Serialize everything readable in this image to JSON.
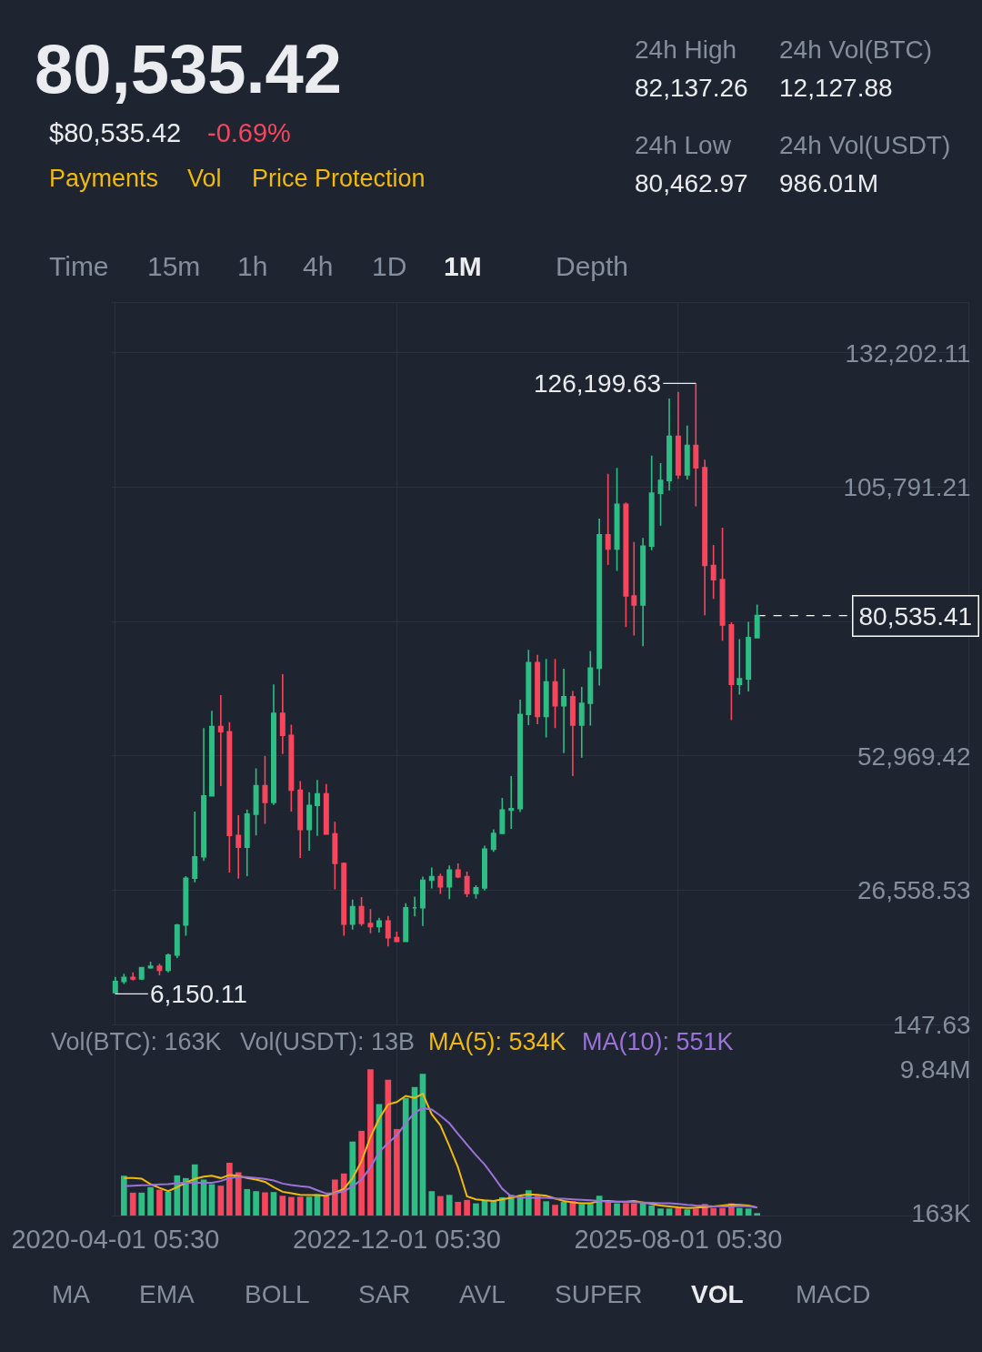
{
  "chart_data": [
    {
      "type": "other",
      "title": "80,535.42",
      "annotations": [
        "$80,535.42",
        "-0.69%",
        "Payments",
        "Vol",
        "Price Protection",
        "24h High",
        "82,137.26",
        "24h Vol(BTC)",
        "12,127.88",
        "24h Low",
        "80,462.97",
        "24h Vol(USDT)",
        "986.01M",
        "Time",
        "15m",
        "1h",
        "4h",
        "1D",
        "1M",
        "Depth"
      ]
    },
    {
      "type": "candlestick",
      "x": [
        "2020-04",
        "2020-05",
        "2020-06",
        "2020-07",
        "2020-08",
        "2020-09",
        "2020-10",
        "2020-11",
        "2020-12",
        "2021-01",
        "2021-02",
        "2021-03",
        "2021-04",
        "2021-05",
        "2021-06",
        "2021-07",
        "2021-08",
        "2021-09",
        "2021-10",
        "2021-11",
        "2021-12",
        "2022-01",
        "2022-02",
        "2022-03",
        "2022-04",
        "2022-05",
        "2022-06",
        "2022-07",
        "2022-08",
        "2022-09",
        "2022-10",
        "2022-11",
        "2022-12",
        "2023-01",
        "2023-02",
        "2023-03",
        "2023-04",
        "2023-05",
        "2023-06",
        "2023-07",
        "2023-08",
        "2023-09",
        "2023-10",
        "2023-11",
        "2023-12",
        "2024-01",
        "2024-02",
        "2024-03",
        "2024-04",
        "2024-05",
        "2024-06",
        "2024-07",
        "2024-08",
        "2024-09",
        "2024-10",
        "2024-11",
        "2024-12",
        "2025-01",
        "2025-02",
        "2025-03",
        "2025-04",
        "2025-05",
        "2025-06",
        "2025-07",
        "2025-08",
        "2025-09",
        "2025-10",
        "2025-11",
        "2025-12",
        "2026-01",
        "2026-02",
        "2026-03",
        "2026-04",
        "2026-05"
      ],
      "ohlc": [
        [
          6400,
          9500,
          6150.11,
          8600
        ],
        [
          8600,
          10100,
          8100,
          9400
        ],
        [
          9400,
          10400,
          8800,
          9100
        ],
        [
          9100,
          11400,
          8900,
          11300
        ],
        [
          11300,
          12500,
          11100,
          11600
        ],
        [
          11600,
          12100,
          9800,
          10800
        ],
        [
          10800,
          14100,
          10400,
          13800
        ],
        [
          13800,
          19900,
          13200,
          19700
        ],
        [
          19700,
          29300,
          17600,
          28900
        ],
        [
          28900,
          42000,
          28100,
          33100
        ],
        [
          33100,
          58400,
          32300,
          45100
        ],
        [
          45100,
          61800,
          45000,
          58700
        ],
        [
          58700,
          64900,
          47000,
          57700
        ],
        [
          57700,
          59600,
          30000,
          37300
        ],
        [
          37300,
          41300,
          28800,
          35000
        ],
        [
          35000,
          42400,
          29300,
          41500
        ],
        [
          41500,
          50500,
          37300,
          47100
        ],
        [
          47100,
          52900,
          39600,
          43800
        ],
        [
          43800,
          67000,
          43300,
          61300
        ],
        [
          61300,
          69000,
          53300,
          57000
        ],
        [
          57000,
          59100,
          42000,
          46200
        ],
        [
          46200,
          48000,
          32900,
          38500
        ],
        [
          38500,
          45800,
          34300,
          43200
        ],
        [
          43200,
          48200,
          37200,
          45500
        ],
        [
          45500,
          47400,
          37600,
          37600
        ],
        [
          37600,
          40000,
          26700,
          31800
        ],
        [
          31800,
          32000,
          17600,
          19900
        ],
        [
          19900,
          24700,
          18800,
          23300
        ],
        [
          23300,
          25200,
          19500,
          20000
        ],
        [
          20000,
          22800,
          18100,
          19400
        ],
        [
          19400,
          21100,
          18200,
          20500
        ],
        [
          20500,
          21500,
          15500,
          17200
        ],
        [
          17200,
          18400,
          16300,
          16500
        ],
        [
          16500,
          24000,
          16500,
          23100
        ],
        [
          23100,
          25300,
          21400,
          23100
        ],
        [
          23100,
          29200,
          19500,
          28500
        ],
        [
          28500,
          31000,
          26900,
          29200
        ],
        [
          29200,
          29800,
          25800,
          27200
        ],
        [
          27200,
          31400,
          24800,
          30500
        ],
        [
          30500,
          31800,
          28900,
          29200
        ],
        [
          29200,
          30200,
          25200,
          25900
        ],
        [
          25900,
          27500,
          24900,
          27000
        ],
        [
          27000,
          35300,
          26500,
          34600
        ],
        [
          34600,
          38500,
          34100,
          37700
        ],
        [
          37700,
          44700,
          37600,
          42300
        ],
        [
          42300,
          49000,
          38600,
          42600
        ],
        [
          42600,
          64000,
          41900,
          61100
        ],
        [
          61100,
          73800,
          59000,
          71300
        ],
        [
          71300,
          72800,
          59200,
          60700
        ],
        [
          60700,
          72000,
          56600,
          67500
        ],
        [
          67500,
          72000,
          58400,
          62800
        ],
        [
          62800,
          70100,
          53500,
          64600
        ],
        [
          64600,
          65700,
          49000,
          59000
        ],
        [
          59000,
          66500,
          52600,
          63300
        ],
        [
          63300,
          73600,
          58900,
          70200
        ],
        [
          70200,
          99600,
          66800,
          96400
        ],
        [
          96400,
          108400,
          90500,
          93600
        ],
        [
          93600,
          109600,
          89300,
          102400
        ],
        [
          102400,
          102800,
          78300,
          84400
        ],
        [
          84400,
          95000,
          76600,
          82600
        ],
        [
          82600,
          95800,
          74500,
          94200
        ],
        [
          94200,
          112000,
          93400,
          104600
        ],
        [
          104600,
          110500,
          98200,
          107100
        ],
        [
          107100,
          123200,
          105100,
          115800
        ],
        [
          115800,
          124500,
          107400,
          108200
        ],
        [
          108200,
          117900,
          107300,
          114000
        ],
        [
          114000,
          126199.63,
          102000,
          109600
        ],
        [
          109600,
          111200,
          80600,
          90400
        ],
        [
          90400,
          94400,
          83800,
          87600
        ],
        [
          87600,
          97800,
          75600,
          78700
        ],
        [
          78700,
          79200,
          60000,
          67000
        ],
        [
          67000,
          75900,
          65000,
          68100
        ],
        [
          68100,
          79300,
          65600,
          76200
        ],
        [
          76200,
          82700,
          76100,
          80535.41
        ]
      ],
      "colors": [
        "#2ebd85",
        "#2ebd85",
        "#f6465d",
        "#2ebd85",
        "#2ebd85",
        "#f6465d",
        "#2ebd85",
        "#2ebd85",
        "#2ebd85",
        "#2ebd85",
        "#2ebd85",
        "#2ebd85",
        "#f6465d",
        "#f6465d",
        "#f6465d",
        "#2ebd85",
        "#2ebd85",
        "#f6465d",
        "#2ebd85",
        "#f6465d",
        "#f6465d",
        "#f6465d",
        "#2ebd85",
        "#2ebd85",
        "#f6465d",
        "#f6465d",
        "#f6465d",
        "#2ebd85",
        "#f6465d",
        "#f6465d",
        "#2ebd85",
        "#f6465d",
        "#f6465d",
        "#2ebd85",
        "#2ebd85",
        "#2ebd85",
        "#2ebd85",
        "#f6465d",
        "#2ebd85",
        "#f6465d",
        "#f6465d",
        "#2ebd85",
        "#2ebd85",
        "#2ebd85",
        "#2ebd85",
        "#2ebd85",
        "#2ebd85",
        "#2ebd85",
        "#f6465d",
        "#2ebd85",
        "#f6465d",
        "#2ebd85",
        "#f6465d",
        "#2ebd85",
        "#2ebd85",
        "#2ebd85",
        "#f6465d",
        "#2ebd85",
        "#f6465d",
        "#f6465d",
        "#2ebd85",
        "#2ebd85",
        "#2ebd85",
        "#2ebd85",
        "#f6465d",
        "#2ebd85",
        "#f6465d",
        "#f6465d",
        "#f6465d",
        "#f6465d",
        "#f6465d",
        "#2ebd85",
        "#2ebd85",
        "#2ebd85"
      ],
      "xlim": [
        "2020-03-20",
        "2028-05-01"
      ],
      "xticks": [
        {
          "value": "2020-04-01T05:30",
          "label": null
        },
        {
          "value": "2022-12-01T05:30",
          "label": null
        },
        {
          "value": "2025-08-01T05:30",
          "label": null
        }
      ],
      "ylim": [
        147.63,
        142000
      ],
      "yticks": [
        {
          "value": 147.63,
          "label": "147.63"
        },
        {
          "value": 26558.53,
          "label": "26,558.53"
        },
        {
          "value": 52969.42,
          "label": "52,969.42"
        },
        {
          "value": 79380.32,
          "label": null
        },
        {
          "value": 105791.21,
          "label": "105,791.21"
        },
        {
          "value": 132202.11,
          "label": "132,202.11"
        }
      ],
      "tick_labels": "y",
      "grid": true,
      "annotations": [
        {
          "text": "126,199.63",
          "x": "2025-10",
          "y": 126199.63
        },
        {
          "text": "6,150.11",
          "x": "2020-04",
          "y": 6150.11
        }
      ],
      "ref_lines": [
        {
          "axis": "y",
          "value": 80535.41,
          "label": "80,535.41",
          "line_style": "dashed",
          "color": "#ffffff"
        }
      ]
    },
    {
      "type": "bar",
      "x": [
        "2020-05",
        "2020-06",
        "2020-07",
        "2020-08",
        "2020-09",
        "2020-10",
        "2020-11",
        "2020-12",
        "2021-01",
        "2021-02",
        "2021-03",
        "2021-04",
        "2021-05",
        "2021-06",
        "2021-07",
        "2021-08",
        "2021-09",
        "2021-10",
        "2021-11",
        "2021-12",
        "2022-01",
        "2022-02",
        "2022-03",
        "2022-04",
        "2022-05",
        "2022-06",
        "2022-07",
        "2022-08",
        "2022-09",
        "2022-10",
        "2022-11",
        "2022-12",
        "2023-01",
        "2023-02",
        "2023-03",
        "2023-04",
        "2023-05",
        "2023-06",
        "2023-07",
        "2023-08",
        "2023-09",
        "2023-10",
        "2023-11",
        "2023-12",
        "2024-01",
        "2024-02",
        "2024-03",
        "2024-04",
        "2024-05",
        "2024-06",
        "2024-07",
        "2024-08",
        "2024-09",
        "2024-10",
        "2024-11",
        "2024-12",
        "2025-01",
        "2025-02",
        "2025-03",
        "2025-04",
        "2025-05",
        "2025-06",
        "2025-07",
        "2025-08",
        "2025-09",
        "2025-10",
        "2025-11",
        "2025-12",
        "2026-01",
        "2026-02",
        "2026-03",
        "2026-04",
        "2026-05"
      ],
      "series": [
        {
          "type": "bar",
          "colors": [
            "#2ebd85",
            "#f6465d",
            "#2ebd85",
            "#2ebd85",
            "#f6465d",
            "#2ebd85",
            "#2ebd85",
            "#2ebd85",
            "#2ebd85",
            "#2ebd85",
            "#2ebd85",
            "#f6465d",
            "#f6465d",
            "#f6465d",
            "#2ebd85",
            "#2ebd85",
            "#f6465d",
            "#2ebd85",
            "#f6465d",
            "#f6465d",
            "#f6465d",
            "#2ebd85",
            "#2ebd85",
            "#f6465d",
            "#f6465d",
            "#f6465d",
            "#2ebd85",
            "#f6465d",
            "#f6465d",
            "#2ebd85",
            "#f6465d",
            "#f6465d",
            "#2ebd85",
            "#2ebd85",
            "#2ebd85",
            "#2ebd85",
            "#f6465d",
            "#2ebd85",
            "#f6465d",
            "#f6465d",
            "#2ebd85",
            "#2ebd85",
            "#2ebd85",
            "#2ebd85",
            "#2ebd85",
            "#2ebd85",
            "#2ebd85",
            "#f6465d",
            "#2ebd85",
            "#f6465d",
            "#2ebd85",
            "#f6465d",
            "#2ebd85",
            "#2ebd85",
            "#2ebd85",
            "#f6465d",
            "#2ebd85",
            "#f6465d",
            "#f6465d",
            "#2ebd85",
            "#2ebd85",
            "#2ebd85",
            "#2ebd85",
            "#f6465d",
            "#2ebd85",
            "#f6465d",
            "#f6465d",
            "#f6465d",
            "#f6465d",
            "#f6465d",
            "#2ebd85",
            "#2ebd85",
            "#2ebd85"
          ],
          "values": [
            2680000,
            1540000,
            1540000,
            1910000,
            1740000,
            1600000,
            2700000,
            2520000,
            3440000,
            2420000,
            2110000,
            2010000,
            3550000,
            2910000,
            1780000,
            1640000,
            1560000,
            1580000,
            1330000,
            1250000,
            1270000,
            1270000,
            1430000,
            1330000,
            2420000,
            2830000,
            4980000,
            5700000,
            9840000,
            7500000,
            9140000,
            5820000,
            7910000,
            8650000,
            9530000,
            1640000,
            1310000,
            1390000,
            920000,
            1050000,
            820000,
            1020000,
            980000,
            1230000,
            1390000,
            1290000,
            1700000,
            1330000,
            960000,
            720000,
            920000,
            980000,
            780000,
            780000,
            1330000,
            940000,
            820000,
            840000,
            820000,
            880000,
            680000,
            470000,
            470000,
            510000,
            410000,
            470000,
            780000,
            510000,
            510000,
            820000,
            510000,
            470000,
            163000
          ]
        },
        {
          "name": "MA(5): 534K",
          "type": "line",
          "color": "#f0b90b",
          "values": [
            2520000,
            2520000,
            2480000,
            2110000,
            1860000,
            1640000,
            1910000,
            2210000,
            2460000,
            2620000,
            2680000,
            2520000,
            2730000,
            2660000,
            2520000,
            2420000,
            2270000,
            1910000,
            1600000,
            1500000,
            1390000,
            1370000,
            1370000,
            1330000,
            1540000,
            1800000,
            2520000,
            3650000,
            5290000,
            6520000,
            7480000,
            7640000,
            8050000,
            7910000,
            8200000,
            6820000,
            6070000,
            4670000,
            3240000,
            1290000,
            1090000,
            1020000,
            980000,
            1090000,
            1190000,
            1350000,
            1430000,
            1390000,
            1330000,
            1150000,
            980000,
            880000,
            820000,
            820000,
            980000,
            980000,
            940000,
            940000,
            980000,
            880000,
            780000,
            680000,
            610000,
            550000,
            510000,
            530000,
            570000,
            610000,
            680000,
            740000,
            720000,
            680000,
            534000
          ]
        },
        {
          "name": "MA(10): 551K",
          "type": "line",
          "color": "#9b72d9",
          "values": [
            1970000,
            2010000,
            2030000,
            2050000,
            2090000,
            2110000,
            2170000,
            2210000,
            2210000,
            2210000,
            2210000,
            2320000,
            2520000,
            2600000,
            2580000,
            2520000,
            2460000,
            2360000,
            2150000,
            2050000,
            1970000,
            1910000,
            1700000,
            1480000,
            1500000,
            1640000,
            1950000,
            2420000,
            3240000,
            4260000,
            4880000,
            5390000,
            6210000,
            6930000,
            7230000,
            7130000,
            6720000,
            6210000,
            5490000,
            4770000,
            4060000,
            3440000,
            2620000,
            1800000,
            1290000,
            1230000,
            1190000,
            1190000,
            1190000,
            1150000,
            1130000,
            1090000,
            1050000,
            1020000,
            980000,
            940000,
            920000,
            920000,
            900000,
            880000,
            860000,
            820000,
            820000,
            780000,
            720000,
            680000,
            660000,
            610000,
            610000,
            610000,
            640000,
            610000,
            551000
          ]
        }
      ],
      "annotations": [
        "Vol(BTC): 163K",
        "Vol(USDT): 13B"
      ],
      "legend": "top left",
      "xlim": [
        "2020-03-20",
        "2028-05-01"
      ],
      "xticks": [
        {
          "value": "2020-04-01T05:30",
          "label": "2020-04-01 05:30"
        },
        {
          "value": "2022-12-01T05:30",
          "label": "2022-12-01 05:30"
        },
        {
          "value": "2025-08-01T05:30",
          "label": "2025-08-01 05:30"
        }
      ],
      "ylim": [
        0,
        12000000
      ],
      "yticks": [
        {
          "value": 163000,
          "label": "163K"
        },
        {
          "value": 9840000,
          "label": "9.84M"
        }
      ],
      "grid": "x"
    },
    {
      "type": "other",
      "annotations": [
        "MA",
        "EMA",
        "BOLL",
        "SAR",
        "AVL",
        "SUPER",
        "VOL",
        "MACD"
      ]
    }
  ]
}
